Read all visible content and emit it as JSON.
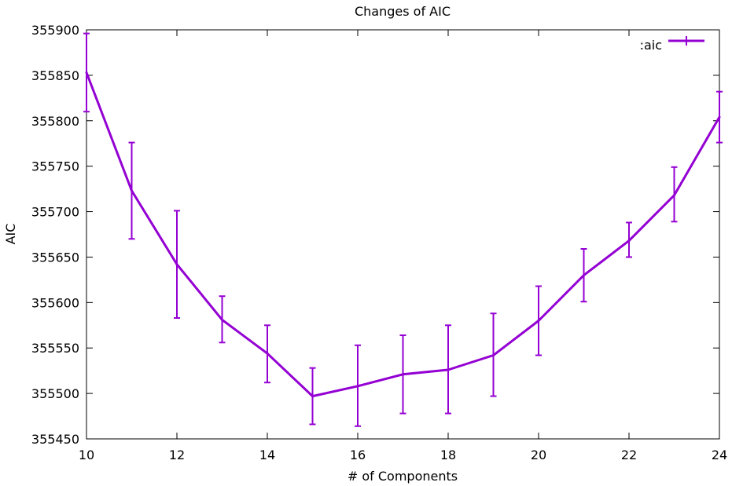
{
  "chart_data": {
    "type": "line",
    "title": "Changes of AIC",
    "xlabel": "# of Components",
    "ylabel": "AIC",
    "xlim": [
      10,
      24
    ],
    "ylim": [
      355450,
      355900
    ],
    "xticks": [
      10,
      12,
      14,
      16,
      18,
      20,
      22,
      24
    ],
    "yticks": [
      355450,
      355500,
      355550,
      355600,
      355650,
      355700,
      355750,
      355800,
      355850,
      355900
    ],
    "grid": false,
    "legend_position": "top-right",
    "series": [
      {
        "name": ":aic",
        "color": "#9400d3",
        "x": [
          10,
          11,
          12,
          13,
          14,
          15,
          16,
          17,
          18,
          19,
          20,
          21,
          22,
          23,
          24
        ],
        "y": [
          355853,
          355723,
          355642,
          355581,
          355544,
          355497,
          355508,
          355521,
          355526,
          355542,
          355580,
          355630,
          355668,
          355718,
          355804
        ],
        "err_low": [
          355810,
          355670,
          355583,
          355556,
          355512,
          355466,
          355464,
          355478,
          355478,
          355497,
          355542,
          355601,
          355650,
          355689,
          355776
        ],
        "err_high": [
          355896,
          355776,
          355701,
          355607,
          355575,
          355528,
          355553,
          355564,
          355575,
          355588,
          355618,
          355659,
          355688,
          355749,
          355832
        ]
      }
    ]
  }
}
